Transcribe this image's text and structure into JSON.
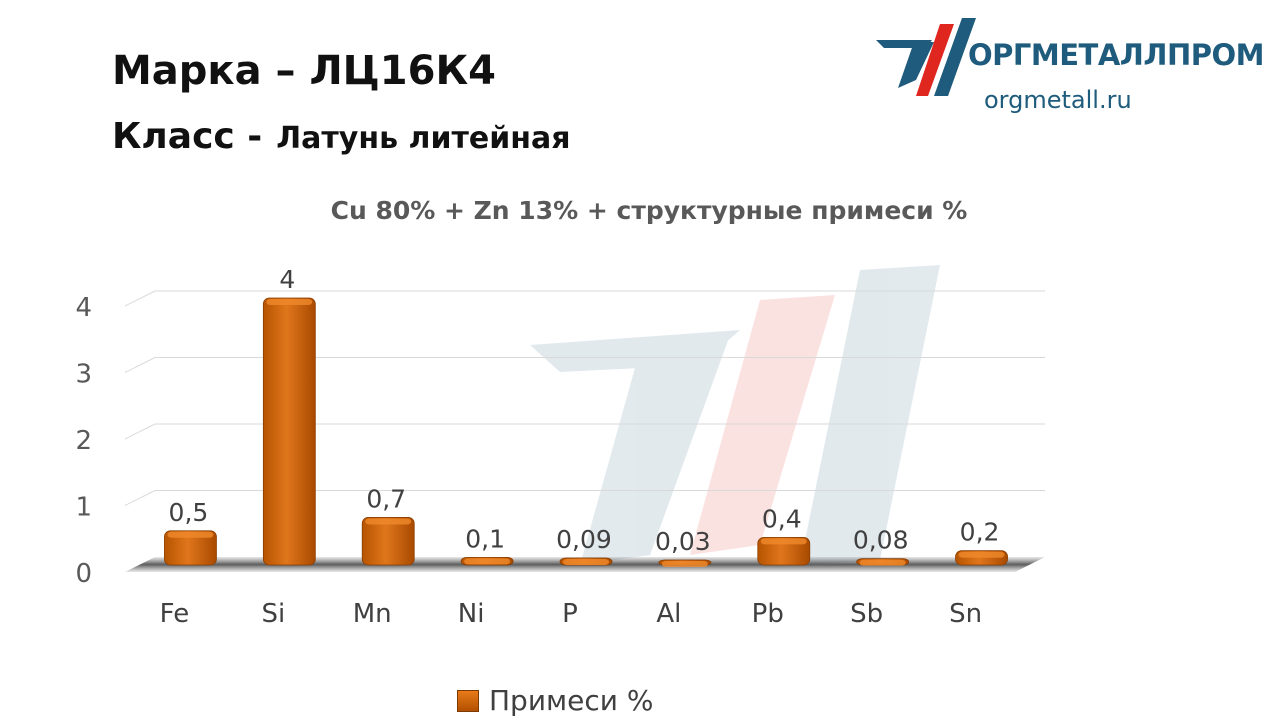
{
  "header": {
    "grade_label": "Марка",
    "grade_sep": "–",
    "grade_value": "ЛЦ16К4",
    "class_label": "Класс -",
    "class_value": "Латунь литейная"
  },
  "logo": {
    "name": "ОРГМЕТАЛЛПРОМ",
    "url": "orgmetall.ru",
    "colors": {
      "dark": "#1e5b7c",
      "red": "#e0271f"
    }
  },
  "chart_data": {
    "type": "bar",
    "title": "Cu 80% + Zn 13% + структурные примеси %",
    "categories": [
      "Fe",
      "Si",
      "Mn",
      "Ni",
      "P",
      "Al",
      "Pb",
      "Sb",
      "Sn"
    ],
    "series": [
      {
        "name": "Примеси %",
        "values": [
          0.5,
          4,
          0.7,
          0.1,
          0.09,
          0.03,
          0.4,
          0.08,
          0.2
        ],
        "labels": [
          "0,5",
          "4",
          "0,7",
          "0,1",
          "0,09",
          "0,03",
          "0,4",
          "0,08",
          "0,2"
        ],
        "color": "#d2691e"
      }
    ],
    "y_ticks": [
      "0",
      "1",
      "2",
      "3",
      "4"
    ],
    "ylim": [
      0,
      4
    ],
    "grid": true,
    "legend_position": "bottom",
    "style": "3d"
  }
}
